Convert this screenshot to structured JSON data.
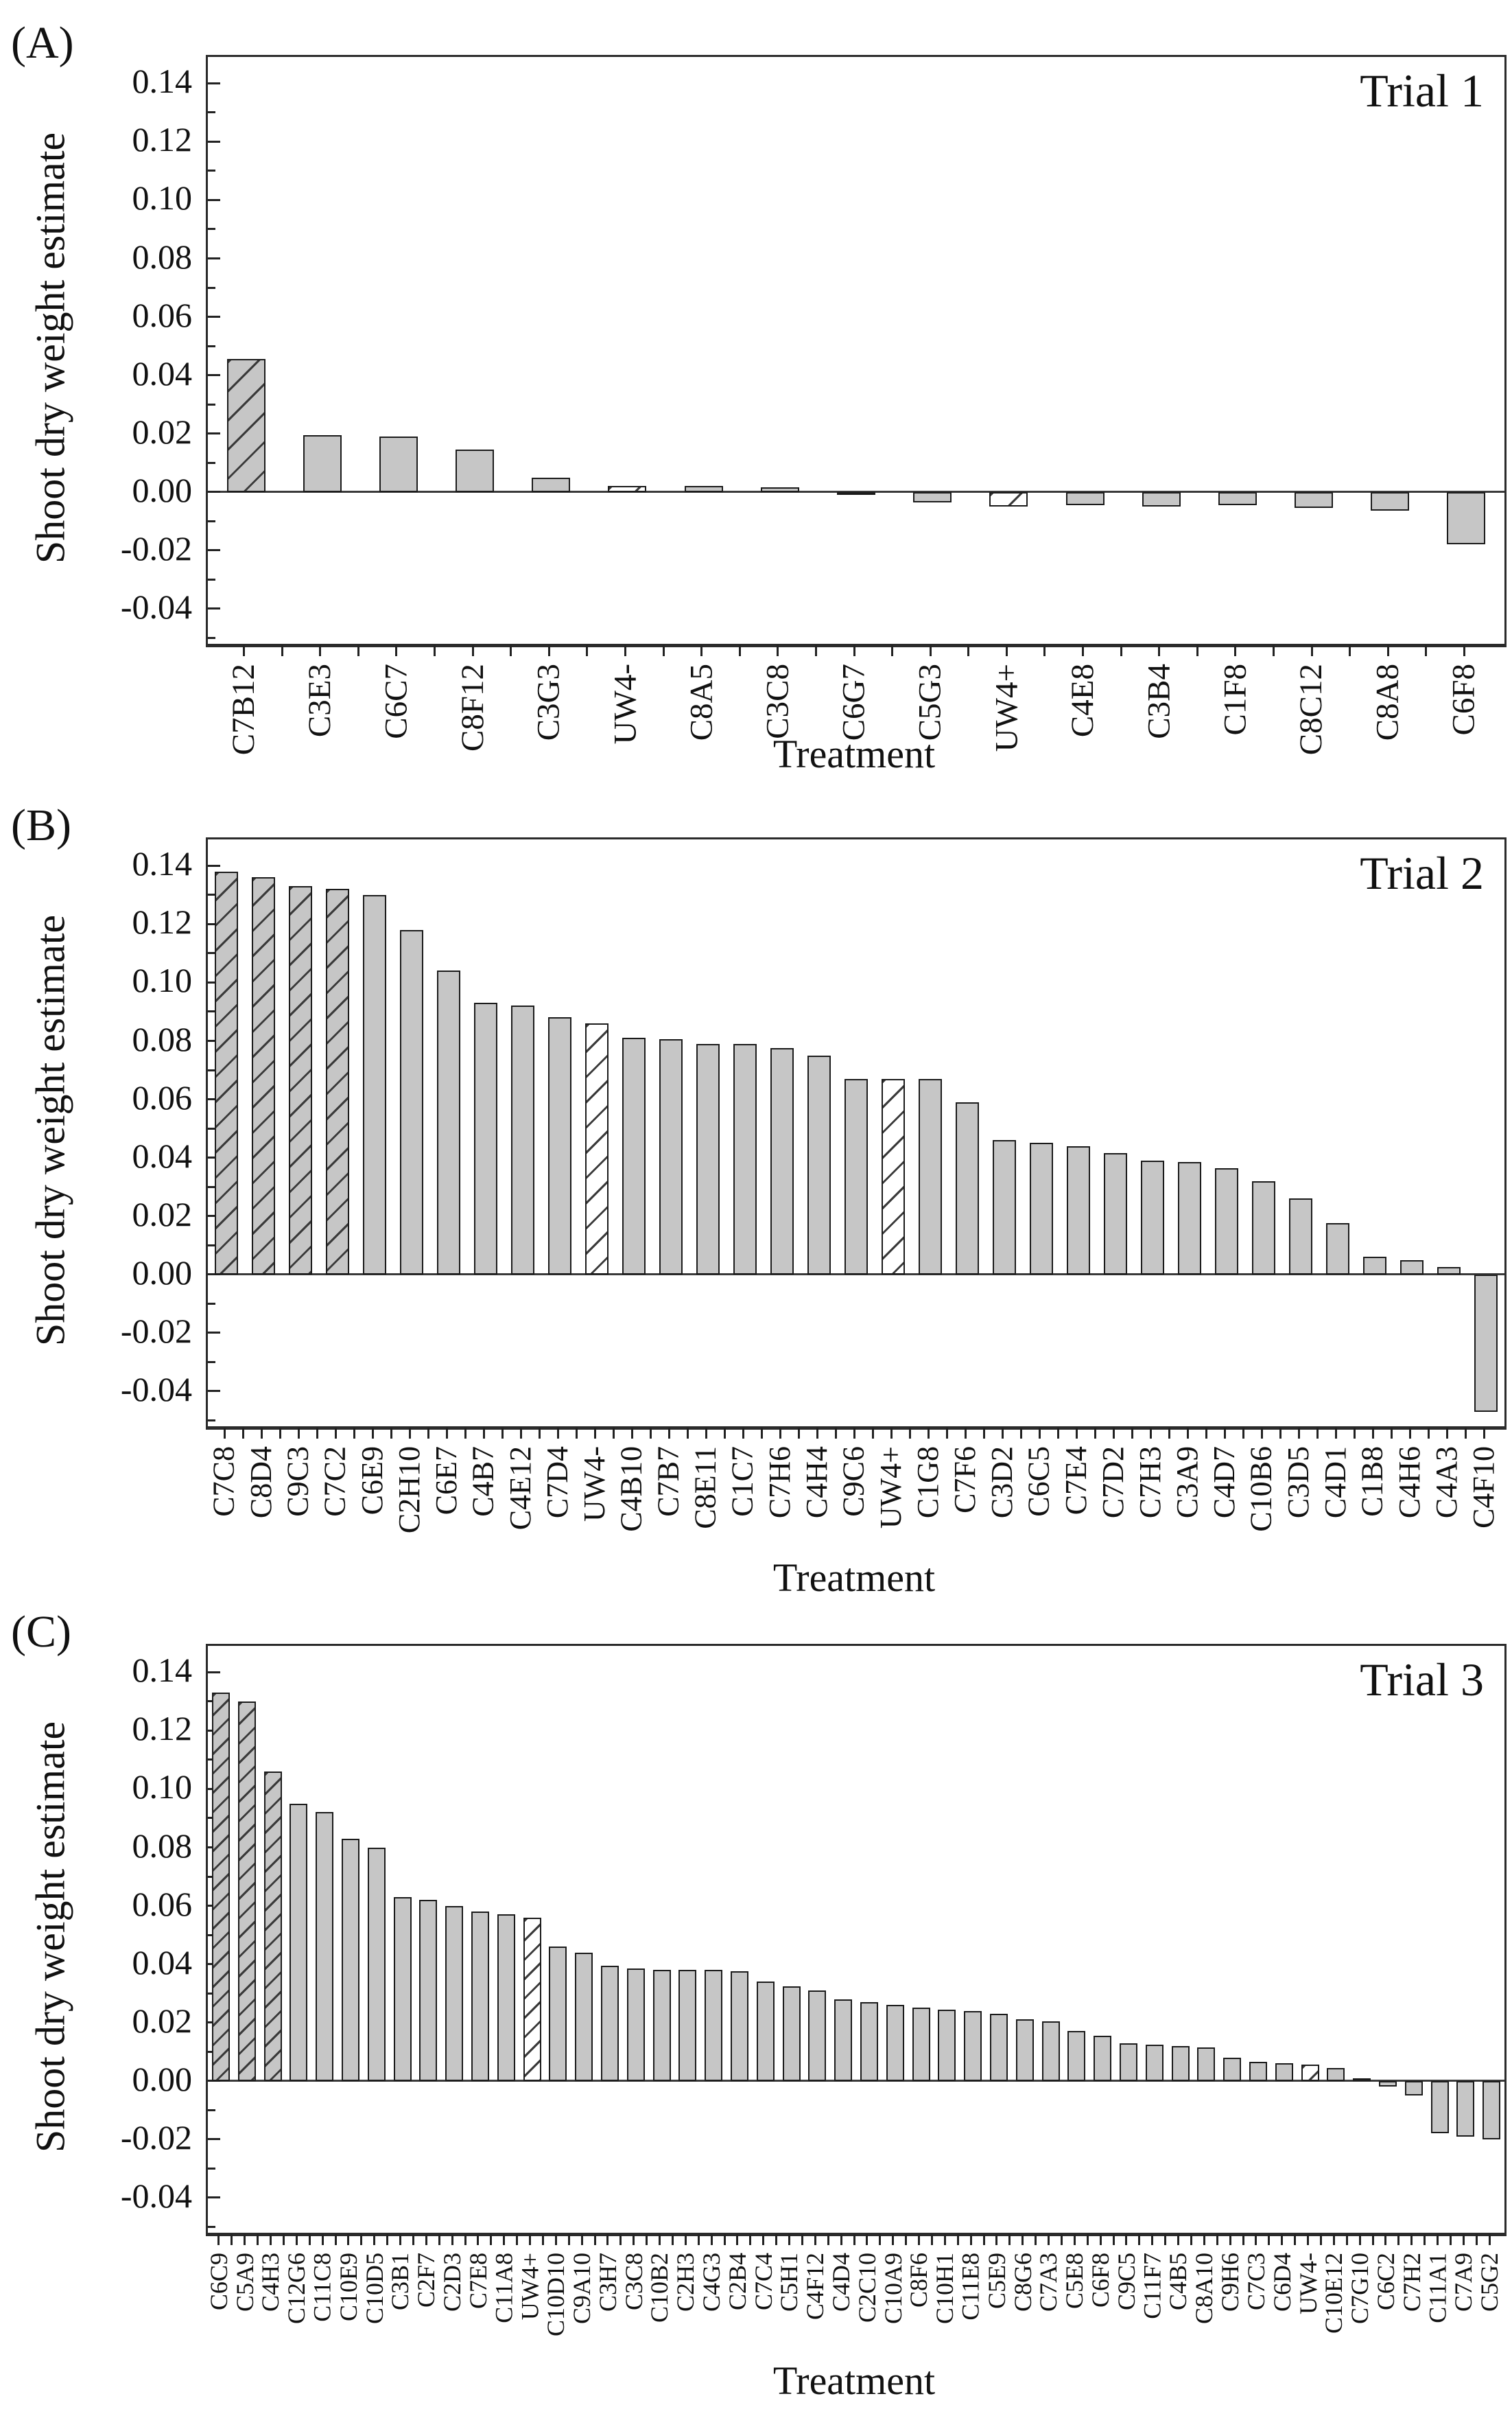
{
  "figure": {
    "x_axis_label": "Treatment",
    "y_axis_label": "Shoot dry weight estimate",
    "colors": {
      "bar_fill": "#c6c6c6",
      "bar_stroke": "#1b1b1b",
      "hatch_line": "#3a3a3a",
      "frame": "#2b2b2b",
      "background": "#ffffff"
    }
  },
  "chart_data": [
    {
      "type": "bar",
      "panel_label": "(A)",
      "title": "Trial 1",
      "xlabel": "Treatment",
      "ylabel": "Shoot dry weight estimate",
      "ylim": [
        -0.052,
        0.149
      ],
      "grid": false,
      "legend": "none",
      "ytick_values": [
        0.14,
        0.12,
        0.1,
        0.08,
        0.06,
        0.04,
        0.02,
        0.0,
        -0.02,
        -0.04
      ],
      "ytick_labels": [
        "0.14",
        "0.12",
        "0.10",
        "0.08",
        "0.06",
        "0.04",
        "0.02",
        "0.00",
        "-0.02",
        "-0.04"
      ],
      "ytick_minor_values": [
        0.13,
        0.11,
        0.09,
        0.07,
        0.05,
        0.03,
        0.01,
        -0.01,
        -0.03,
        -0.05
      ],
      "categories": [
        "C7B12",
        "C3E3",
        "C6C7",
        "C8F12",
        "C3G3",
        "UW4-",
        "C8A5",
        "C3C8",
        "C6G7",
        "C5G3",
        "UW4+",
        "C4E8",
        "C3B4",
        "C1F8",
        "C8C12",
        "C8A8",
        "C6F8"
      ],
      "values": [
        0.0455,
        0.0195,
        0.019,
        0.0145,
        0.005,
        0.002,
        0.002,
        0.0015,
        -0.001,
        -0.0035,
        -0.005,
        -0.0045,
        -0.005,
        -0.0045,
        -0.0055,
        -0.0065,
        -0.018
      ],
      "bar_styles": [
        "gray-hatch",
        "gray",
        "gray",
        "gray",
        "gray",
        "white-hatch",
        "gray",
        "gray",
        "gray",
        "gray",
        "white-hatch",
        "gray",
        "gray",
        "gray",
        "gray",
        "gray",
        "gray"
      ]
    },
    {
      "type": "bar",
      "panel_label": "(B)",
      "title": "Trial 2",
      "xlabel": "Treatment",
      "ylabel": "Shoot dry weight estimate",
      "ylim": [
        -0.052,
        0.149
      ],
      "grid": false,
      "legend": "none",
      "ytick_values": [
        0.14,
        0.12,
        0.1,
        0.08,
        0.06,
        0.04,
        0.02,
        0.0,
        -0.02,
        -0.04
      ],
      "ytick_labels": [
        "0.14",
        "0.12",
        "0.10",
        "0.08",
        "0.06",
        "0.04",
        "0.02",
        "0.00",
        "-0.02",
        "-0.04"
      ],
      "ytick_minor_values": [
        0.13,
        0.11,
        0.09,
        0.07,
        0.05,
        0.03,
        0.01,
        -0.01,
        -0.03,
        -0.05
      ],
      "categories": [
        "C7C8",
        "C8D4",
        "C9C3",
        "C7C2",
        "C6E9",
        "C2H10",
        "C6E7",
        "C4B7",
        "C4E12",
        "C7D4",
        "UW4-",
        "C4B10",
        "C7B7",
        "C8E11",
        "C1C7",
        "C7H6",
        "C4H4",
        "C9C6",
        "UW4+",
        "C1G8",
        "C7F6",
        "C3D2",
        "C6C5",
        "C7E4",
        "C7D2",
        "C7H3",
        "C3A9",
        "C4D7",
        "C10B6",
        "C3D5",
        "C4D1",
        "C1B8",
        "C4H6",
        "C4A3",
        "C4F10"
      ],
      "values": [
        0.138,
        0.136,
        0.133,
        0.132,
        0.13,
        0.118,
        0.104,
        0.093,
        0.092,
        0.088,
        0.086,
        0.081,
        0.0805,
        0.079,
        0.079,
        0.0775,
        0.075,
        0.067,
        0.067,
        0.067,
        0.059,
        0.046,
        0.045,
        0.044,
        0.0415,
        0.039,
        0.0385,
        0.0365,
        0.032,
        0.026,
        0.0175,
        0.006,
        0.005,
        0.0025,
        -0.047
      ],
      "bar_styles": [
        "gray-hatch",
        "gray-hatch",
        "gray-hatch",
        "gray-hatch",
        "gray",
        "gray",
        "gray",
        "gray",
        "gray",
        "gray",
        "white-hatch",
        "gray",
        "gray",
        "gray",
        "gray",
        "gray",
        "gray",
        "gray",
        "white-hatch",
        "gray",
        "gray",
        "gray",
        "gray",
        "gray",
        "gray",
        "gray",
        "gray",
        "gray",
        "gray",
        "gray",
        "gray",
        "gray",
        "gray",
        "gray",
        "gray"
      ]
    },
    {
      "type": "bar",
      "panel_label": "(C)",
      "title": "Trial 3",
      "xlabel": "Treatment",
      "ylabel": "Shoot dry weight estimate",
      "ylim": [
        -0.052,
        0.149
      ],
      "grid": false,
      "legend": "none",
      "ytick_values": [
        0.14,
        0.12,
        0.1,
        0.08,
        0.06,
        0.04,
        0.02,
        0.0,
        -0.02,
        -0.04
      ],
      "ytick_labels": [
        "0.14",
        "0.12",
        "0.10",
        "0.08",
        "0.06",
        "0.04",
        "0.02",
        "0.00",
        "-0.02",
        "-0.04"
      ],
      "ytick_minor_values": [
        0.13,
        0.11,
        0.09,
        0.07,
        0.05,
        0.03,
        0.01,
        -0.01,
        -0.03,
        -0.05
      ],
      "categories": [
        "C6C9",
        "C5A9",
        "C4H3",
        "C12G6",
        "C11C8",
        "C10E9",
        "C10D5",
        "C3B1",
        "C2F7",
        "C2D3",
        "C7E8",
        "C11A8",
        "UW4+",
        "C10D10",
        "C9A10",
        "C3H7",
        "C3C8",
        "C10B2",
        "C2H3",
        "C4G3",
        "C2B4",
        "C7C4",
        "C5H1",
        "C4F12",
        "C4D4",
        "C2C10",
        "C10A9",
        "C8F6",
        "C10H1",
        "C11E8",
        "C5E9",
        "C8G6",
        "C7A3",
        "C5E8",
        "C6F8",
        "C9C5",
        "C11F7",
        "C4B5",
        "C8A10",
        "C9H6",
        "C7C3",
        "C6D4",
        "UW4-",
        "C10E12",
        "C7G10",
        "C6C2",
        "C7H2",
        "C11A1",
        "C7A9",
        "C5G2"
      ],
      "values": [
        0.133,
        0.13,
        0.106,
        0.095,
        0.092,
        0.083,
        0.08,
        0.063,
        0.062,
        0.06,
        0.058,
        0.057,
        0.056,
        0.046,
        0.044,
        0.0395,
        0.0385,
        0.038,
        0.038,
        0.038,
        0.0375,
        0.034,
        0.0325,
        0.031,
        0.028,
        0.027,
        0.026,
        0.025,
        0.0245,
        0.024,
        0.023,
        0.021,
        0.0205,
        0.017,
        0.0155,
        0.013,
        0.0125,
        0.012,
        0.0115,
        0.008,
        0.0065,
        0.006,
        0.0055,
        0.0045,
        0.001,
        -0.002,
        -0.005,
        -0.018,
        -0.019,
        -0.02
      ],
      "bar_styles": [
        "gray-hatch",
        "gray-hatch",
        "gray-hatch",
        "gray",
        "gray",
        "gray",
        "gray",
        "gray",
        "gray",
        "gray",
        "gray",
        "gray",
        "white-hatch",
        "gray",
        "gray",
        "gray",
        "gray",
        "gray",
        "gray",
        "gray",
        "gray",
        "gray",
        "gray",
        "gray",
        "gray",
        "gray",
        "gray",
        "gray",
        "gray",
        "gray",
        "gray",
        "gray",
        "gray",
        "gray",
        "gray",
        "gray",
        "gray",
        "gray",
        "gray",
        "gray",
        "gray",
        "gray",
        "white-hatch",
        "gray",
        "gray",
        "gray",
        "gray",
        "gray",
        "gray",
        "gray"
      ]
    }
  ]
}
